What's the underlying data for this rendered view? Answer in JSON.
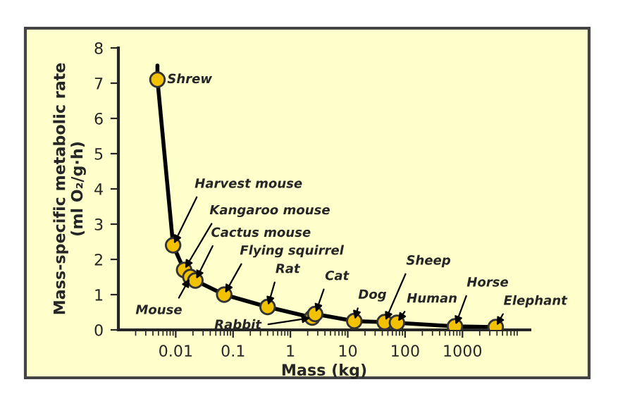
{
  "chart_data": {
    "type": "line",
    "xlabel": "Mass (kg)",
    "ylabel": "Mass-specific metabolic rate\n(ml O₂/g·h)",
    "log": "x",
    "xlim": [
      0.001,
      15000
    ],
    "xticks": [
      0.01,
      0.1,
      1,
      10,
      100,
      1000
    ],
    "ylim": [
      0,
      8
    ],
    "yticks": [
      0,
      1,
      2,
      3,
      4,
      5,
      6,
      7,
      8
    ],
    "grid": false,
    "legend": false,
    "series": [
      {
        "color": "#000000",
        "marker": "none",
        "x": [
          0.0048,
          0.0048,
          0.009,
          0.014,
          0.018,
          0.022,
          0.07,
          0.4,
          2.4,
          2.7,
          13,
          44,
          72,
          740,
          3800
        ],
        "values": [
          7.5,
          7.1,
          2.4,
          1.7,
          1.5,
          1.4,
          1.0,
          0.65,
          0.35,
          0.45,
          0.25,
          0.22,
          0.2,
          0.1,
          0.08
        ]
      },
      {
        "type": "scatter",
        "color": "#f2c200",
        "marker": "circle",
        "x": [
          0.0048,
          0.009,
          0.014,
          0.018,
          0.022,
          0.07,
          0.4,
          2.4,
          2.7,
          13,
          44,
          72,
          740,
          3800
        ],
        "values": [
          7.1,
          2.4,
          1.7,
          1.5,
          1.4,
          1.0,
          0.65,
          0.35,
          0.45,
          0.25,
          0.22,
          0.2,
          0.1,
          0.08
        ]
      }
    ],
    "annotations": [
      {
        "text": "Shrew",
        "x": 0.0048,
        "y": 7.1
      },
      {
        "text": "Harvest mouse",
        "x": 0.009,
        "y": 2.4
      },
      {
        "text": "Kangaroo mouse",
        "x": 0.014,
        "y": 1.7
      },
      {
        "text": "Mouse",
        "x": 0.018,
        "y": 1.5
      },
      {
        "text": "Cactus mouse",
        "x": 0.022,
        "y": 1.4
      },
      {
        "text": "Flying squirrel",
        "x": 0.07,
        "y": 1.0
      },
      {
        "text": "Rat",
        "x": 0.4,
        "y": 0.65
      },
      {
        "text": "Rabbit",
        "x": 2.4,
        "y": 0.35
      },
      {
        "text": "Cat",
        "x": 2.7,
        "y": 0.45
      },
      {
        "text": "Dog",
        "x": 13,
        "y": 0.25
      },
      {
        "text": "Sheep",
        "x": 44,
        "y": 0.22
      },
      {
        "text": "Human",
        "x": 72,
        "y": 0.2
      },
      {
        "text": "Horse",
        "x": 740,
        "y": 0.1
      },
      {
        "text": "Elephant",
        "x": 3800,
        "y": 0.08
      }
    ]
  }
}
